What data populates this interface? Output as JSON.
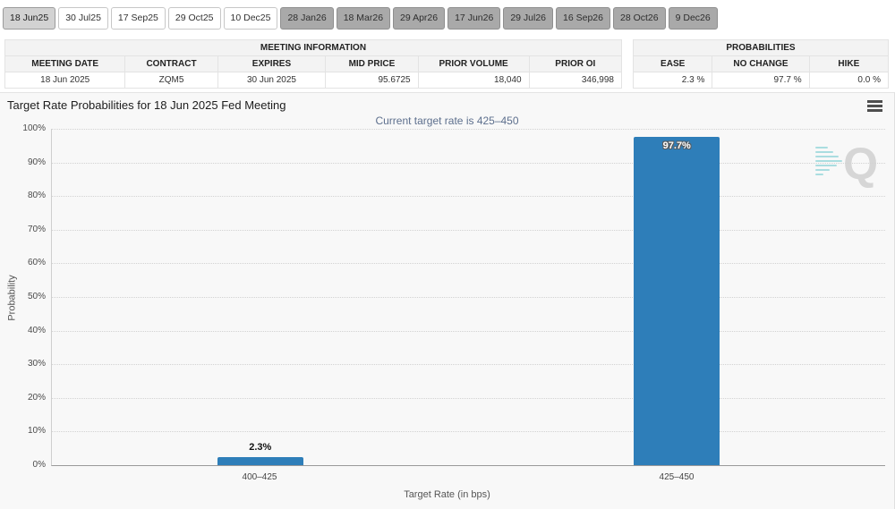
{
  "tabs": {
    "items": [
      {
        "label": "18 Jun25",
        "state": "selected"
      },
      {
        "label": "30 Jul25",
        "state": "normal"
      },
      {
        "label": "17 Sep25",
        "state": "normal"
      },
      {
        "label": "29 Oct25",
        "state": "normal"
      },
      {
        "label": "10 Dec25",
        "state": "normal"
      },
      {
        "label": "28 Jan26",
        "state": "future"
      },
      {
        "label": "18 Mar26",
        "state": "future"
      },
      {
        "label": "29 Apr26",
        "state": "future"
      },
      {
        "label": "17 Jun26",
        "state": "future"
      },
      {
        "label": "29 Jul26",
        "state": "future"
      },
      {
        "label": "16 Sep26",
        "state": "future"
      },
      {
        "label": "28 Oct26",
        "state": "future"
      },
      {
        "label": "9 Dec26",
        "state": "future"
      }
    ]
  },
  "meeting_info": {
    "title": "MEETING INFORMATION",
    "columns": [
      "MEETING DATE",
      "CONTRACT",
      "EXPIRES",
      "MID PRICE",
      "PRIOR VOLUME",
      "PRIOR OI"
    ],
    "row": [
      "18 Jun 2025",
      "ZQM5",
      "30 Jun 2025",
      "95.6725",
      "18,040",
      "346,998"
    ]
  },
  "probabilities": {
    "title": "PROBABILITIES",
    "columns": [
      "EASE",
      "NO CHANGE",
      "HIKE"
    ],
    "row": [
      "2.3 %",
      "97.7 %",
      "0.0 %"
    ]
  },
  "chart_data": {
    "type": "bar",
    "title": "Target Rate Probabilities for 18 Jun 2025 Fed Meeting",
    "subtitle": "Current target rate is 425–450",
    "categories": [
      "400–425",
      "425–450"
    ],
    "values": [
      2.3,
      97.7
    ],
    "value_labels": [
      "2.3%",
      "97.7%"
    ],
    "xlabel": "Target Rate (in bps)",
    "ylabel": "Probability",
    "ylim": [
      0,
      100
    ],
    "ytick_step": 10,
    "grid": "dotted horizontal",
    "legend": "none",
    "bar_color": "#2e7eb9"
  },
  "icons": {
    "menu": "hamburger-menu",
    "watermark": "Q"
  }
}
